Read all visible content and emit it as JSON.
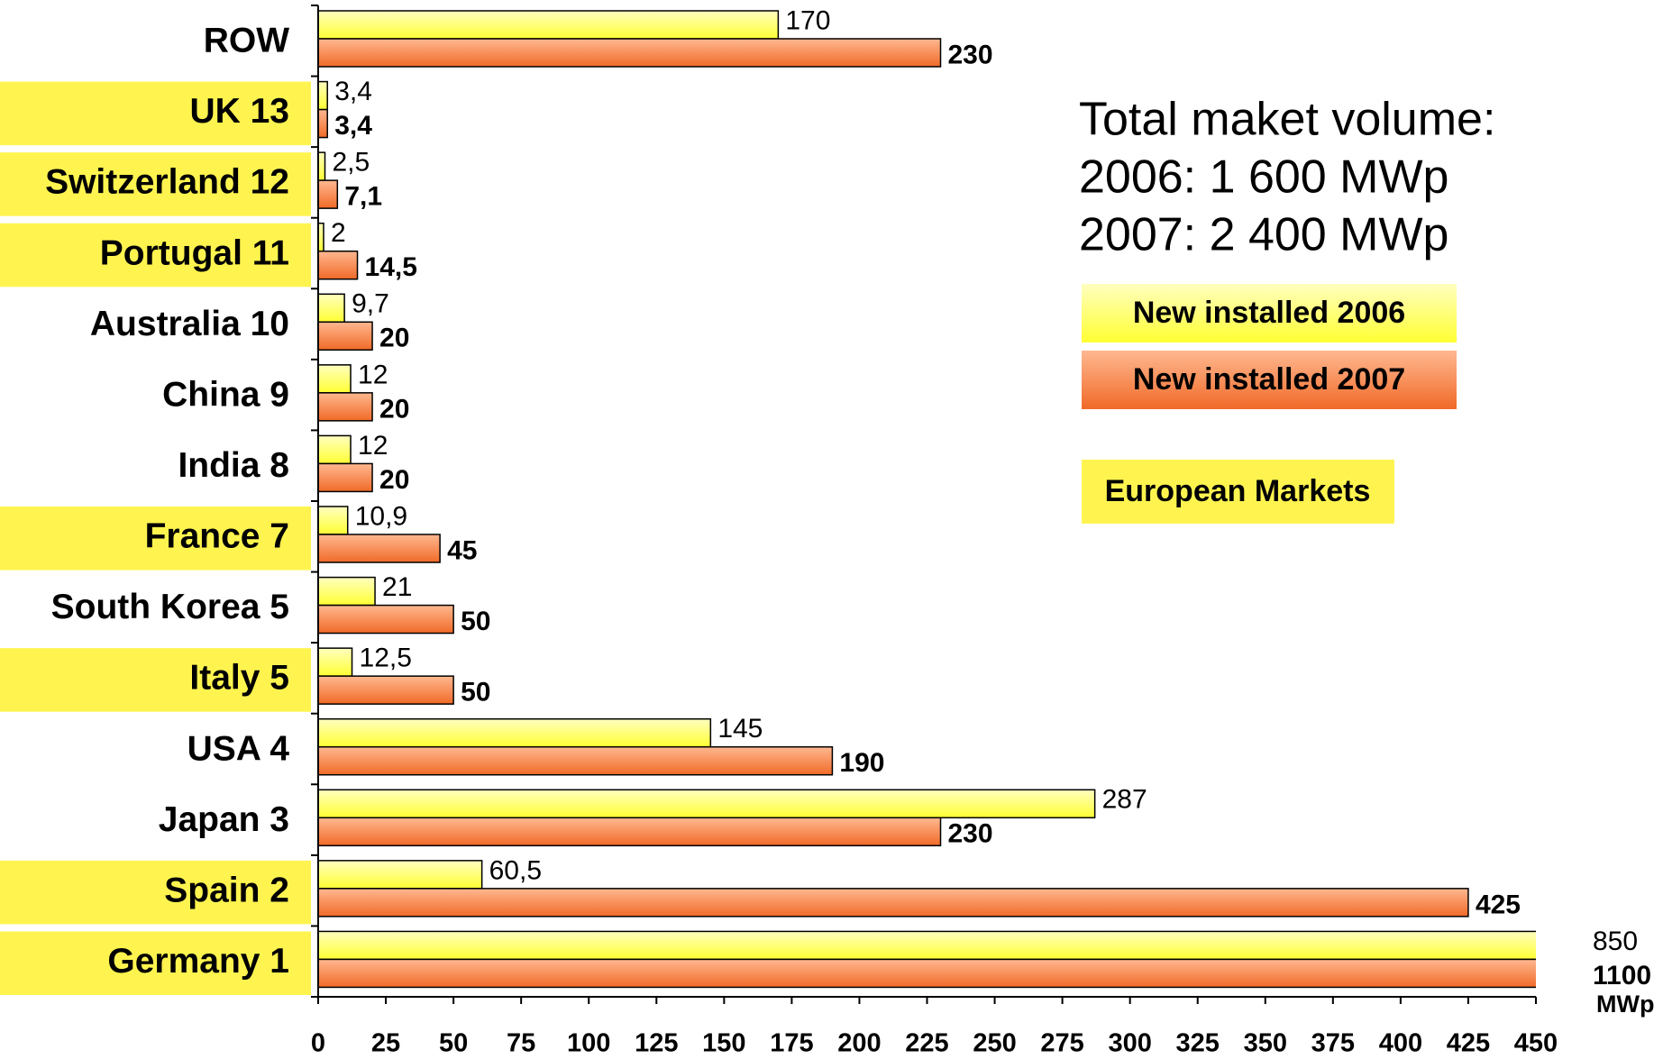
{
  "chart_data": {
    "type": "bar",
    "orientation": "horizontal",
    "categories": [
      "ROW",
      "UK 13",
      "Switzerland 12",
      "Portugal 11",
      "Australia 10",
      "China 9",
      "India 8",
      "France  7",
      "South Korea  5",
      "Italy  5",
      "USA 4",
      "Japan 3",
      "Spain  2",
      "Germany  1"
    ],
    "highlighted": [
      false,
      true,
      true,
      true,
      false,
      false,
      false,
      true,
      false,
      true,
      false,
      false,
      true,
      true
    ],
    "highlight_color": "#fff44f",
    "series": [
      {
        "name": "New installed 2006",
        "color": "#ffff66",
        "values": [
          170,
          3.4,
          2.5,
          2,
          9.7,
          12,
          12,
          10.9,
          21,
          12.5,
          145,
          287,
          60.5,
          850
        ],
        "value_labels": [
          "170",
          "3,4",
          "2,5",
          "2",
          "9,7",
          "12",
          "12",
          "10,9",
          "21",
          "12,5",
          "145",
          "287",
          "60,5",
          "850"
        ]
      },
      {
        "name": "New installed 2007",
        "color": "#ff8c4a",
        "values": [
          230,
          3.4,
          7.1,
          14.5,
          20,
          20,
          20,
          45,
          50,
          50,
          190,
          230,
          425,
          1100
        ],
        "value_labels": [
          "230",
          "3,4",
          "7,1",
          "14,5",
          "20",
          "20",
          "20",
          "45",
          "50",
          "50",
          "190",
          "230",
          "425",
          "1100"
        ]
      }
    ],
    "x_label": "MWp",
    "xlim": [
      0,
      450
    ],
    "xticks": [
      0,
      25,
      50,
      75,
      100,
      125,
      150,
      175,
      200,
      225,
      250,
      275,
      300,
      325,
      350,
      375,
      400,
      425,
      450
    ],
    "annotations": [
      "Total maket volume:",
      "2006:   1 600 MWp",
      "2007:   2 400 MWp",
      "European Markets"
    ]
  }
}
